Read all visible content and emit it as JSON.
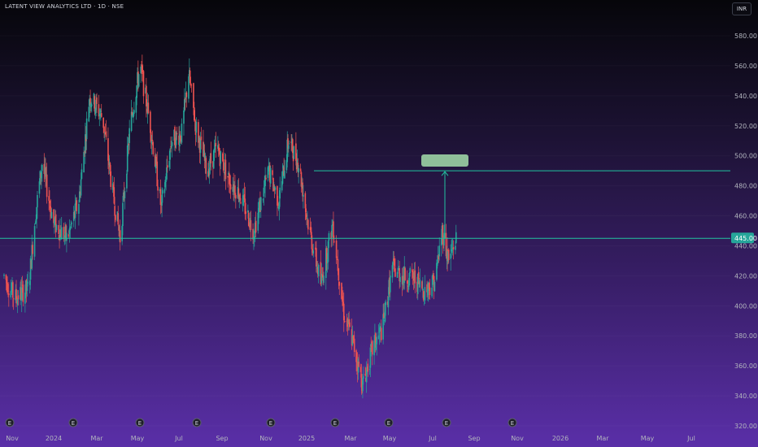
{
  "header": {
    "title": "LATENT VIEW ANALYTICS LTD · 1D · NSE",
    "currency": "INR"
  },
  "colors": {
    "up": "#26a69a",
    "down": "#ef5350",
    "level_line": "#22c3a0",
    "price_badge": "#26a69a",
    "target_box": "#8fbf9a",
    "axis_text": "#b2b5be"
  },
  "chart_data": {
    "type": "candlestick",
    "ylim": [
      320,
      585
    ],
    "y_ticks": [
      "580.00",
      "560.00",
      "540.00",
      "520.00",
      "500.00",
      "480.00",
      "460.00",
      "440.00",
      "420.00",
      "400.00",
      "380.00",
      "360.00",
      "340.00",
      "320.00"
    ],
    "x_ticks": [
      "Nov",
      "2024",
      "Mar",
      "May",
      "Jul",
      "Sep",
      "Nov",
      "2025",
      "Mar",
      "May",
      "Jul",
      "Sep",
      "Nov",
      "2026",
      "Mar",
      "May",
      "Jul"
    ],
    "current_price": "445.00",
    "horizontal_levels": [
      445,
      490
    ],
    "target": {
      "from": 445,
      "to": 490
    },
    "earnings_markers": [
      "E",
      "E",
      "E",
      "E",
      "E",
      "E",
      "E",
      "E",
      "E"
    ],
    "price_path": [
      [
        "2023-10-20",
        420
      ],
      [
        "2023-11-05",
        405
      ],
      [
        "2023-11-25",
        412
      ],
      [
        "2023-12-05",
        460
      ],
      [
        "2023-12-15",
        495
      ],
      [
        "2024-01-01",
        455
      ],
      [
        "2024-01-20",
        445
      ],
      [
        "2024-02-05",
        470
      ],
      [
        "2024-02-20",
        540
      ],
      [
        "2024-03-10",
        525
      ],
      [
        "2024-03-25",
        475
      ],
      [
        "2024-04-05",
        445
      ],
      [
        "2024-04-20",
        520
      ],
      [
        "2024-05-05",
        560
      ],
      [
        "2024-05-20",
        520
      ],
      [
        "2024-06-05",
        465
      ],
      [
        "2024-06-20",
        510
      ],
      [
        "2024-07-05",
        515
      ],
      [
        "2024-07-15",
        555
      ],
      [
        "2024-07-25",
        520
      ],
      [
        "2024-08-10",
        490
      ],
      [
        "2024-08-25",
        505
      ],
      [
        "2024-09-10",
        485
      ],
      [
        "2024-09-25",
        475
      ],
      [
        "2024-10-15",
        450
      ],
      [
        "2024-11-05",
        490
      ],
      [
        "2024-11-20",
        470
      ],
      [
        "2024-12-05",
        510
      ],
      [
        "2024-12-20",
        495
      ],
      [
        "2025-01-05",
        450
      ],
      [
        "2025-01-20",
        415
      ],
      [
        "2025-02-05",
        455
      ],
      [
        "2025-02-20",
        395
      ],
      [
        "2025-03-05",
        375
      ],
      [
        "2025-03-20",
        348
      ],
      [
        "2025-04-05",
        372
      ],
      [
        "2025-04-20",
        385
      ],
      [
        "2025-05-05",
        425
      ],
      [
        "2025-05-20",
        420
      ],
      [
        "2025-06-05",
        418
      ],
      [
        "2025-06-20",
        410
      ],
      [
        "2025-07-05",
        418
      ],
      [
        "2025-07-15",
        450
      ],
      [
        "2025-07-25",
        430
      ],
      [
        "2025-08-05",
        445
      ]
    ]
  }
}
